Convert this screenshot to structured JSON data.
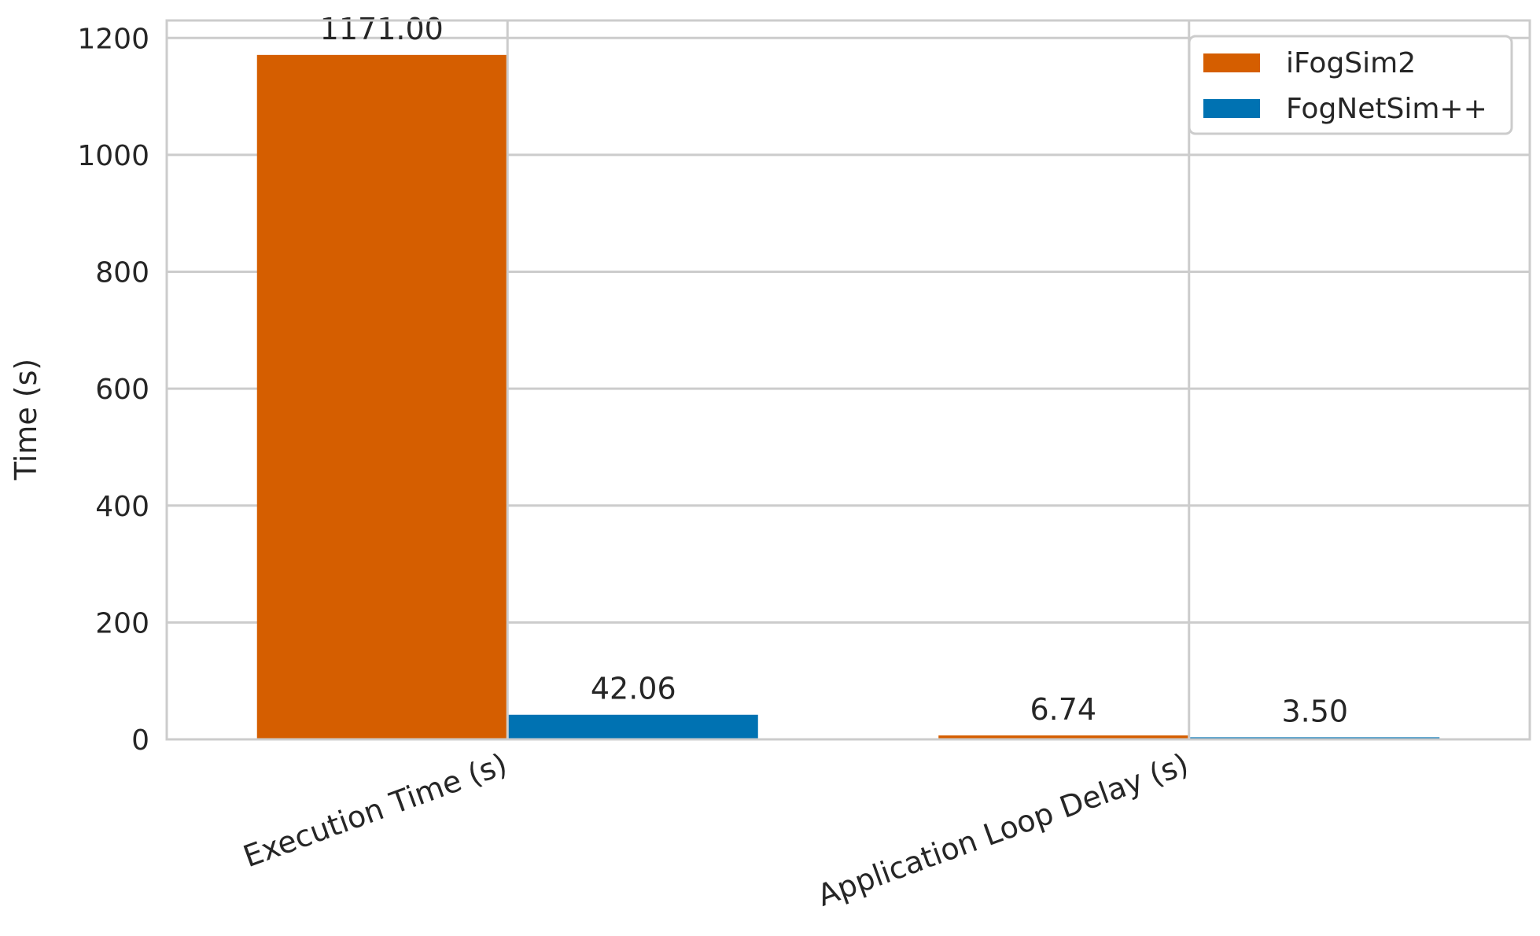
{
  "chart_data": {
    "type": "bar",
    "title": "",
    "xlabel": "",
    "ylabel": "Time (s)",
    "categories": [
      "Execution Time (s)",
      "Application Loop Delay (s)"
    ],
    "series": [
      {
        "name": "iFogSim2",
        "color": "#d55e00",
        "values": [
          1171.0,
          6.74
        ],
        "labels": [
          "1171.00",
          "6.74"
        ]
      },
      {
        "name": "FogNetSim++",
        "color": "#0072b2",
        "values": [
          42.06,
          3.5
        ],
        "labels": [
          "42.06",
          "3.50"
        ]
      }
    ],
    "ylim": [
      0,
      1230
    ],
    "yticks": [
      "0",
      "200",
      "400",
      "600",
      "800",
      "1000",
      "1200"
    ],
    "grid": true,
    "legend_position": "top-right"
  }
}
